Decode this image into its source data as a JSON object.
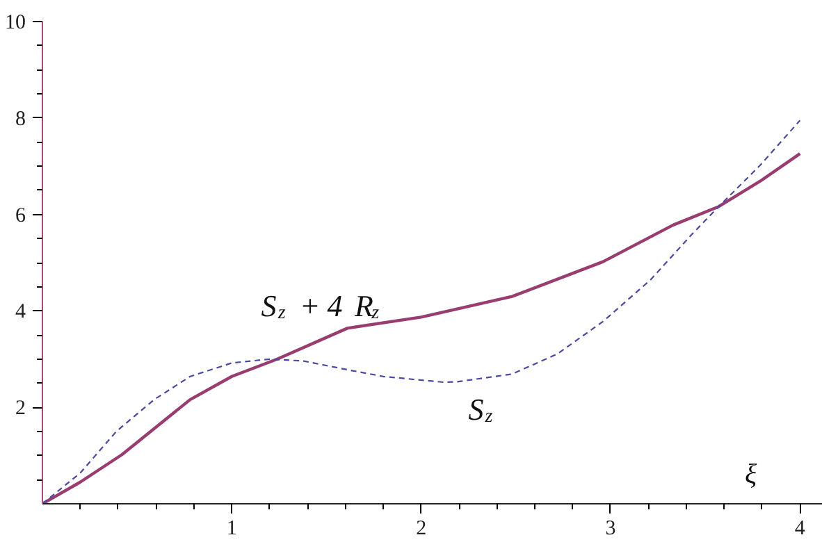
{
  "chart_data": {
    "type": "line",
    "xlabel": "ξ",
    "xlim": [
      0,
      4.12
    ],
    "ylim": [
      0,
      10
    ],
    "xticks": [
      {
        "value": 0.2,
        "label": null
      },
      {
        "value": 0.4,
        "label": null
      },
      {
        "value": 0.6,
        "label": null
      },
      {
        "value": 0.8,
        "label": null
      },
      1,
      {
        "value": 1.2,
        "label": null
      },
      {
        "value": 1.4,
        "label": null
      },
      {
        "value": 1.6,
        "label": null
      },
      {
        "value": 1.8,
        "label": null
      },
      2,
      {
        "value": 2.2,
        "label": null
      },
      {
        "value": 2.4,
        "label": null
      },
      {
        "value": 2.6,
        "label": null
      },
      {
        "value": 2.8,
        "label": null
      },
      3,
      {
        "value": 3.2,
        "label": null
      },
      {
        "value": 3.4,
        "label": null
      },
      {
        "value": 3.6,
        "label": null
      },
      {
        "value": 3.8,
        "label": null
      },
      4
    ],
    "yticks": [
      {
        "value": 0.5,
        "label": null
      },
      {
        "value": 1,
        "label": null
      },
      {
        "value": 1.5,
        "label": null
      },
      2,
      {
        "value": 2.5,
        "label": null
      },
      {
        "value": 3,
        "label": null
      },
      {
        "value": 3.5,
        "label": null
      },
      4,
      {
        "value": 4.5,
        "label": null
      },
      {
        "value": 5,
        "label": null
      },
      {
        "value": 5.5,
        "label": null
      },
      6,
      {
        "value": 6.5,
        "label": null
      },
      {
        "value": 7,
        "label": null
      },
      {
        "value": 7.5,
        "label": null
      },
      8,
      {
        "value": 8.5,
        "label": null
      },
      {
        "value": 9,
        "label": null
      },
      {
        "value": 9.5,
        "label": null
      },
      10
    ],
    "grid": false,
    "marker": "none",
    "series": [
      {
        "name": "S$_{z}$ + 4 R$_{z}$",
        "color": "#993d70",
        "line_style": "solid",
        "x": [
          0,
          0.2,
          0.42,
          0.78,
          1.0,
          1.24,
          1.61,
          2.0,
          2.48,
          2.96,
          3.33,
          3.57,
          3.79,
          4.0
        ],
        "values": [
          0,
          0.45,
          1.02,
          2.16,
          2.64,
          3.0,
          3.64,
          3.87,
          4.3,
          5.02,
          5.78,
          6.16,
          6.69,
          7.26
        ]
      },
      {
        "name": "S$_{z}$",
        "color": "#4a4aa0",
        "line_style": "dashed",
        "x": [
          0,
          0.2,
          0.39,
          0.59,
          0.78,
          1.0,
          1.2,
          1.38,
          1.61,
          1.8,
          2.12,
          2.19,
          2.48,
          2.72,
          2.96,
          3.21,
          3.43,
          3.57,
          3.79,
          4.0
        ],
        "values": [
          0,
          0.64,
          1.5,
          2.16,
          2.64,
          2.92,
          3.0,
          2.96,
          2.78,
          2.64,
          2.52,
          2.53,
          2.69,
          3.11,
          3.78,
          4.64,
          5.59,
          6.16,
          7.02,
          7.95
        ]
      }
    ]
  }
}
